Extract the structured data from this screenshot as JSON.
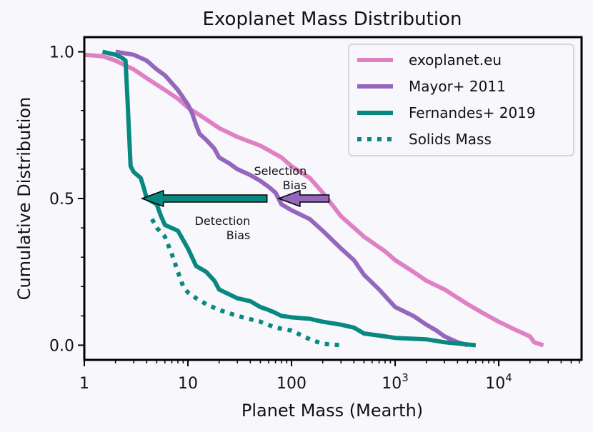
{
  "chart_data": {
    "type": "line",
    "title": "Exoplanet Mass Distribution",
    "xlabel": "Planet Mass (Mearth)",
    "ylabel": "Cumulative Distribution",
    "xscale": "log",
    "xlim": [
      1,
      63000
    ],
    "ylim": [
      -0.05,
      1.05
    ],
    "x_ticks": [
      {
        "value": 1,
        "label": "1"
      },
      {
        "value": 10,
        "label": "10"
      },
      {
        "value": 100,
        "label": "100"
      },
      {
        "value": 1000,
        "label": "10",
        "exp": "3"
      },
      {
        "value": 10000,
        "label": "10",
        "exp": "4"
      }
    ],
    "y_ticks": [
      {
        "value": 0.0,
        "label": "0.0"
      },
      {
        "value": 0.5,
        "label": "0.5"
      },
      {
        "value": 1.0,
        "label": "1.0"
      }
    ],
    "legend_position": "top-right",
    "series": [
      {
        "name": "exoplanet.eu",
        "color": "#df80c5",
        "style": "solid",
        "points": [
          [
            1,
            0.99
          ],
          [
            1.5,
            0.985
          ],
          [
            2,
            0.97
          ],
          [
            3,
            0.94
          ],
          [
            4,
            0.91
          ],
          [
            6,
            0.87
          ],
          [
            8,
            0.84
          ],
          [
            10,
            0.81
          ],
          [
            15,
            0.77
          ],
          [
            20,
            0.74
          ],
          [
            30,
            0.71
          ],
          [
            50,
            0.68
          ],
          [
            80,
            0.64
          ],
          [
            100,
            0.61
          ],
          [
            150,
            0.57
          ],
          [
            200,
            0.52
          ],
          [
            300,
            0.44
          ],
          [
            500,
            0.37
          ],
          [
            800,
            0.32
          ],
          [
            1000,
            0.29
          ],
          [
            1500,
            0.25
          ],
          [
            2000,
            0.22
          ],
          [
            3000,
            0.19
          ],
          [
            5000,
            0.14
          ],
          [
            7000,
            0.11
          ],
          [
            10000,
            0.08
          ],
          [
            15000,
            0.05
          ],
          [
            20000,
            0.03
          ],
          [
            22000,
            0.01
          ],
          [
            27000,
            0.0
          ]
        ]
      },
      {
        "name": "Mayor+ 2011",
        "color": "#9467bd",
        "style": "solid",
        "points": [
          [
            2,
            1.0
          ],
          [
            3,
            0.99
          ],
          [
            4,
            0.97
          ],
          [
            5,
            0.94
          ],
          [
            6,
            0.92
          ],
          [
            8,
            0.87
          ],
          [
            10,
            0.82
          ],
          [
            11,
            0.79
          ],
          [
            12,
            0.75
          ],
          [
            13,
            0.72
          ],
          [
            15,
            0.7
          ],
          [
            18,
            0.67
          ],
          [
            20,
            0.64
          ],
          [
            25,
            0.62
          ],
          [
            30,
            0.6
          ],
          [
            40,
            0.58
          ],
          [
            50,
            0.56
          ],
          [
            60,
            0.54
          ],
          [
            70,
            0.52
          ],
          [
            80,
            0.48
          ],
          [
            100,
            0.46
          ],
          [
            150,
            0.43
          ],
          [
            200,
            0.39
          ],
          [
            300,
            0.33
          ],
          [
            400,
            0.29
          ],
          [
            500,
            0.24
          ],
          [
            700,
            0.19
          ],
          [
            1000,
            0.13
          ],
          [
            1500,
            0.1
          ],
          [
            2000,
            0.07
          ],
          [
            2500,
            0.05
          ],
          [
            3000,
            0.03
          ],
          [
            4000,
            0.01
          ],
          [
            5000,
            0.0
          ]
        ]
      },
      {
        "name": "Fernandes+ 2019",
        "color": "#088880",
        "style": "solid",
        "points": [
          [
            1.5,
            1.0
          ],
          [
            2.0,
            0.99
          ],
          [
            2.3,
            0.98
          ],
          [
            2.5,
            0.97
          ],
          [
            2.6,
            0.85
          ],
          [
            2.8,
            0.61
          ],
          [
            3.0,
            0.59
          ],
          [
            3.5,
            0.57
          ],
          [
            3.8,
            0.53
          ],
          [
            4.0,
            0.5
          ],
          [
            4.5,
            0.49
          ],
          [
            5.0,
            0.48
          ],
          [
            5.5,
            0.44
          ],
          [
            6,
            0.41
          ],
          [
            8,
            0.39
          ],
          [
            10,
            0.33
          ],
          [
            12,
            0.27
          ],
          [
            15,
            0.25
          ],
          [
            18,
            0.22
          ],
          [
            20,
            0.19
          ],
          [
            30,
            0.16
          ],
          [
            40,
            0.15
          ],
          [
            50,
            0.13
          ],
          [
            60,
            0.12
          ],
          [
            70,
            0.11
          ],
          [
            80,
            0.1
          ],
          [
            100,
            0.095
          ],
          [
            150,
            0.09
          ],
          [
            200,
            0.08
          ],
          [
            300,
            0.07
          ],
          [
            400,
            0.06
          ],
          [
            500,
            0.04
          ],
          [
            800,
            0.03
          ],
          [
            1000,
            0.025
          ],
          [
            2000,
            0.02
          ],
          [
            3000,
            0.01
          ],
          [
            6000,
            0.0
          ]
        ]
      },
      {
        "name": "Solids Mass",
        "color": "#088880",
        "style": "dotted",
        "points": [
          [
            4.5,
            0.43
          ],
          [
            5,
            0.4
          ],
          [
            6,
            0.37
          ],
          [
            7,
            0.31
          ],
          [
            8,
            0.25
          ],
          [
            9,
            0.2
          ],
          [
            10,
            0.18
          ],
          [
            12,
            0.16
          ],
          [
            15,
            0.14
          ],
          [
            20,
            0.12
          ],
          [
            30,
            0.1
          ],
          [
            50,
            0.08
          ],
          [
            70,
            0.06
          ],
          [
            100,
            0.05
          ],
          [
            150,
            0.02
          ],
          [
            200,
            0.005
          ],
          [
            300,
            0.0
          ]
        ]
      }
    ],
    "arrows": [
      {
        "x_from": 230,
        "x_to": 75,
        "y": 0.5,
        "color": "#9467bd"
      },
      {
        "x_from": 58,
        "x_to": 3.6,
        "y": 0.5,
        "color": "#088880"
      }
    ],
    "annotations": [
      {
        "text_lines": [
          "Selection",
          "Bias"
        ],
        "x": 140,
        "y": 0.58
      },
      {
        "text_lines": [
          "Detection",
          "Bias"
        ],
        "x": 40,
        "y": 0.41
      }
    ]
  }
}
